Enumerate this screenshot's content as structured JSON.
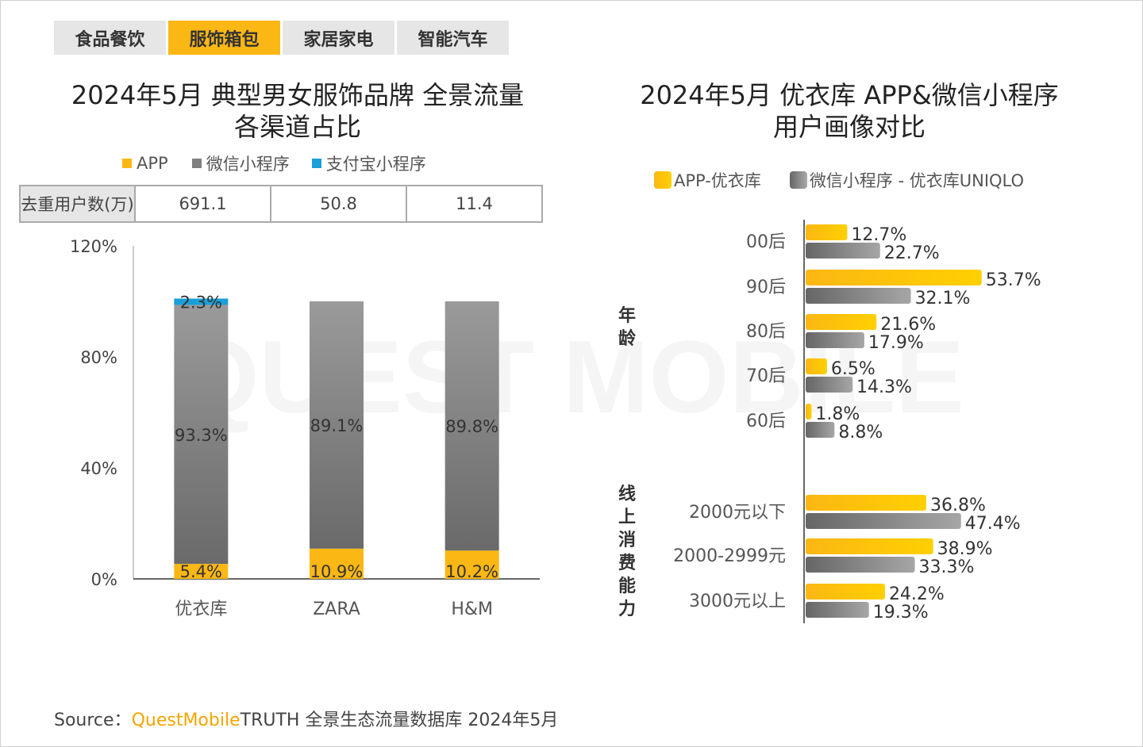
{
  "tabs": [
    {
      "label": "食品餐饮",
      "active": false
    },
    {
      "label": "服饰箱包",
      "active": true
    },
    {
      "label": "家居家电",
      "active": false
    },
    {
      "label": "智能汽车",
      "active": false
    }
  ],
  "watermark": "QUEST MOBILE",
  "colors": {
    "app": "#fbb714",
    "wechat": "#7f7f7f",
    "alipay": "#1a9fd8",
    "active_tab": "#fbb714"
  },
  "chart_data": [
    {
      "type": "bar",
      "stacked": true,
      "title_line1": "2024年5月 典型男女服饰品牌 全景流量",
      "title_line2": "各渠道占比",
      "categories": [
        "优衣库",
        "ZARA",
        "H&M"
      ],
      "series": [
        {
          "name": "APP",
          "values": [
            5.4,
            10.9,
            10.2
          ],
          "labels": [
            "5.4%",
            "10.9%",
            "10.2%"
          ]
        },
        {
          "name": "微信小程序",
          "values": [
            93.3,
            89.1,
            89.8
          ],
          "labels": [
            "93.3%",
            "89.1%",
            "89.8%"
          ]
        },
        {
          "name": "支付宝小程序",
          "values": [
            2.3,
            null,
            null
          ],
          "labels": [
            "2.3%",
            "",
            ""
          ]
        }
      ],
      "table": {
        "header": "去重用户数(万)",
        "values": [
          "691.1",
          "50.8",
          "11.4"
        ]
      },
      "yticks": [
        "0%",
        "40%",
        "80%",
        "120%"
      ],
      "ylim": [
        0,
        120
      ],
      "legend": "top"
    },
    {
      "type": "bar",
      "orientation": "horizontal",
      "title_line1": "2024年5月 优衣库 APP&微信小程序",
      "title_line2": "用户画像对比",
      "groups": [
        {
          "name": "年龄",
          "categories": [
            "00后",
            "90后",
            "80后",
            "70后",
            "60后"
          ]
        },
        {
          "name": "线上消费能力",
          "categories": [
            "2000元以下",
            "2000-2999元",
            "3000元以上"
          ]
        }
      ],
      "series": [
        {
          "name": "APP-优衣库",
          "values": [
            12.7,
            53.7,
            21.6,
            6.5,
            1.8,
            36.8,
            38.9,
            24.2
          ],
          "labels": [
            "12.7%",
            "53.7%",
            "21.6%",
            "6.5%",
            "1.8%",
            "36.8%",
            "38.9%",
            "24.2%"
          ]
        },
        {
          "name": "微信小程序 - 优衣库UNIQLO",
          "values": [
            22.7,
            32.1,
            17.9,
            14.3,
            8.8,
            47.4,
            33.3,
            19.3
          ],
          "labels": [
            "22.7%",
            "32.1%",
            "17.9%",
            "14.3%",
            "8.8%",
            "47.4%",
            "33.3%",
            "19.3%"
          ]
        }
      ],
      "legend": "top"
    }
  ],
  "source": {
    "prefix": "Source：",
    "brand": "QuestMobile",
    "rest": "TRUTH 全景生态流量数据库 2024年5月"
  }
}
